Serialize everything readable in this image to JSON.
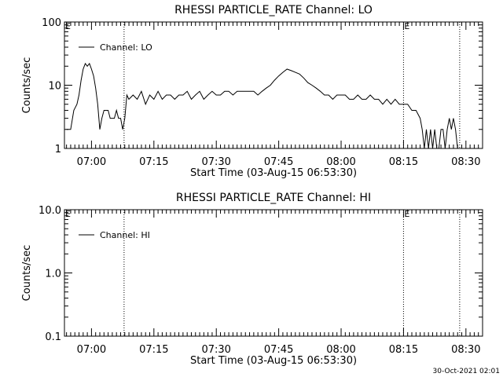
{
  "footer": {
    "timestamp": "30-Oct-2021 02:01"
  },
  "chart_data": [
    {
      "type": "line",
      "title": "RHESSI PARTICLE_RATE Channel: LO",
      "xlabel": "Start Time (03-Aug-15 06:53:30)",
      "ylabel": "Counts/sec",
      "yscale": "log",
      "ylim": [
        1,
        100
      ],
      "y_ticks": [
        1,
        10,
        100
      ],
      "y_tick_labels": [
        "1",
        "10",
        "100"
      ],
      "xlim": [
        "06:53:30",
        "08:34:00"
      ],
      "x_ticks": [
        "07:00",
        "07:15",
        "07:30",
        "07:45",
        "08:00",
        "08:15",
        "08:30"
      ],
      "legend": {
        "entries": [
          "Channel: LO"
        ],
        "placement": "top-left"
      },
      "event_markers": [
        {
          "time": "07:07:50",
          "label": ""
        },
        {
          "time": "08:15:00",
          "label": "E"
        },
        {
          "time": "08:28:30",
          "label": ""
        }
      ],
      "left_flag_label": "E",
      "series": [
        {
          "name": "Channel: LO",
          "x": [
            "06:54:00",
            "06:55:00",
            "06:55:45",
            "06:56:30",
            "06:57:00",
            "06:57:30",
            "06:58:00",
            "06:58:30",
            "06:59:00",
            "06:59:30",
            "07:00:00",
            "07:00:30",
            "07:01:00",
            "07:01:30",
            "07:02:00",
            "07:02:30",
            "07:03:00",
            "07:03:30",
            "07:04:00",
            "07:04:30",
            "07:05:00",
            "07:05:30",
            "07:06:00",
            "07:06:30",
            "07:07:00",
            "07:07:30",
            "07:08:00",
            "07:08:30",
            "07:09:00",
            "07:10:00",
            "07:11:00",
            "07:12:00",
            "07:13:00",
            "07:14:00",
            "07:15:00",
            "07:16:00",
            "07:17:00",
            "07:18:00",
            "07:19:00",
            "07:20:00",
            "07:21:00",
            "07:22:00",
            "07:23:00",
            "07:24:00",
            "07:25:00",
            "07:26:00",
            "07:27:00",
            "07:28:00",
            "07:29:00",
            "07:30:00",
            "07:31:00",
            "07:32:00",
            "07:33:00",
            "07:34:00",
            "07:35:00",
            "07:36:00",
            "07:37:00",
            "07:38:00",
            "07:39:00",
            "07:40:00",
            "07:41:00",
            "07:42:00",
            "07:43:00",
            "07:44:00",
            "07:45:00",
            "07:46:00",
            "07:47:00",
            "07:48:00",
            "07:49:00",
            "07:50:00",
            "07:51:00",
            "07:52:00",
            "07:53:00",
            "07:54:00",
            "07:55:00",
            "07:56:00",
            "07:57:00",
            "07:58:00",
            "07:59:00",
            "08:00:00",
            "08:01:00",
            "08:02:00",
            "08:03:00",
            "08:04:00",
            "08:05:00",
            "08:06:00",
            "08:07:00",
            "08:08:00",
            "08:09:00",
            "08:10:00",
            "08:11:00",
            "08:12:00",
            "08:13:00",
            "08:14:00",
            "08:15:00",
            "08:16:00",
            "08:17:00",
            "08:18:00",
            "08:19:00",
            "08:19:30",
            "08:20:00",
            "08:20:30",
            "08:21:00",
            "08:21:30",
            "08:22:00",
            "08:22:30",
            "08:23:00",
            "08:23:30",
            "08:24:00",
            "08:24:30",
            "08:25:00",
            "08:25:30",
            "08:26:00",
            "08:26:30",
            "08:27:00",
            "08:27:30",
            "08:28:00"
          ],
          "values": [
            2,
            2,
            4,
            5,
            7,
            12,
            18,
            22,
            20,
            22,
            18,
            14,
            9,
            5,
            2,
            3,
            4,
            4,
            4,
            3,
            3,
            3,
            4,
            3,
            3,
            2,
            3,
            7,
            6,
            7,
            6,
            8,
            5,
            7,
            6,
            8,
            6,
            7,
            7,
            6,
            7,
            7,
            8,
            6,
            7,
            8,
            6,
            7,
            8,
            7,
            7,
            8,
            8,
            7,
            8,
            8,
            8,
            8,
            8,
            7,
            8,
            9,
            10,
            12,
            14,
            16,
            18,
            17,
            16,
            15,
            13,
            11,
            10,
            9,
            8,
            7,
            7,
            6,
            7,
            7,
            7,
            6,
            6,
            7,
            6,
            6,
            7,
            6,
            6,
            5,
            6,
            5,
            6,
            5,
            5,
            5,
            4,
            4,
            3,
            2,
            1,
            2,
            1,
            2,
            1,
            2,
            1,
            1,
            2,
            2,
            1,
            2,
            3,
            2,
            3,
            2,
            1
          ]
        }
      ]
    },
    {
      "type": "line",
      "title": "RHESSI PARTICLE_RATE Channel: HI",
      "xlabel": "Start Time (03-Aug-15 06:53:30)",
      "ylabel": "Counts/sec",
      "yscale": "log",
      "ylim": [
        0.1,
        10
      ],
      "y_ticks": [
        0.1,
        1,
        10
      ],
      "y_tick_labels": [
        "0.1",
        "1.0",
        "10.0"
      ],
      "xlim": [
        "06:53:30",
        "08:34:00"
      ],
      "x_ticks": [
        "07:00",
        "07:15",
        "07:30",
        "07:45",
        "08:00",
        "08:15",
        "08:30"
      ],
      "legend": {
        "entries": [
          "Channel: HI"
        ],
        "placement": "top-left"
      },
      "event_markers": [
        {
          "time": "07:07:50",
          "label": ""
        },
        {
          "time": "08:15:00",
          "label": "E"
        },
        {
          "time": "08:28:30",
          "label": ""
        }
      ],
      "left_flag_label": "E",
      "series": [
        {
          "name": "Channel: HI",
          "x": [],
          "values": []
        }
      ]
    }
  ]
}
